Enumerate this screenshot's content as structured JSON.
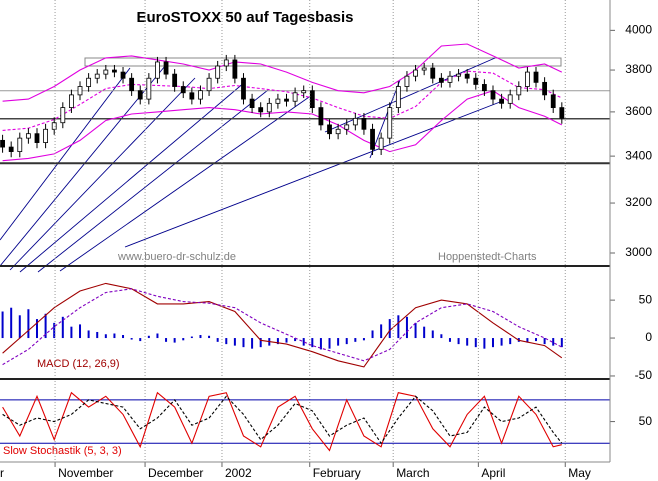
{
  "chart_data": [
    {
      "type": "candlestick",
      "title": "EuroSTOXX 50 auf Tagesbasis",
      "annotations": [
        "www.buero-dr-schulz.de",
        "Hoppenstedt-Charts"
      ],
      "xlim": [
        -0.3,
        70.6
      ],
      "ylim": [
        2950,
        4160
      ],
      "log_scale": true,
      "yticks": [
        3000,
        3200,
        3400,
        3600,
        3800,
        4000
      ],
      "open": [
        3470,
        3440,
        3420,
        3480,
        3500,
        3460,
        3520,
        3550,
        3620,
        3680,
        3720,
        3760,
        3780,
        3800,
        3790,
        3760,
        3700,
        3660,
        3760,
        3840,
        3780,
        3720,
        3690,
        3660,
        3700,
        3760,
        3820,
        3850,
        3760,
        3660,
        3620,
        3600,
        3640,
        3660,
        3650,
        3690,
        3700,
        3620,
        3540,
        3500,
        3520,
        3540,
        3570,
        3520,
        3430,
        3480,
        3620,
        3720,
        3770,
        3800,
        3810,
        3760,
        3740,
        3770,
        3780,
        3760,
        3730,
        3700,
        3660,
        3640,
        3680,
        3720,
        3790,
        3740,
        3680,
        3620
      ],
      "high": [
        3495,
        3465,
        3505,
        3525,
        3525,
        3545,
        3575,
        3645,
        3705,
        3745,
        3785,
        3805,
        3825,
        3825,
        3815,
        3785,
        3725,
        3785,
        3865,
        3865,
        3805,
        3745,
        3715,
        3725,
        3785,
        3845,
        3875,
        3875,
        3785,
        3685,
        3645,
        3665,
        3685,
        3685,
        3715,
        3725,
        3725,
        3645,
        3565,
        3545,
        3565,
        3595,
        3595,
        3545,
        3505,
        3645,
        3745,
        3795,
        3825,
        3835,
        3835,
        3785,
        3795,
        3805,
        3805,
        3785,
        3755,
        3725,
        3685,
        3705,
        3745,
        3815,
        3815,
        3765,
        3705,
        3645
      ],
      "low": [
        3415,
        3395,
        3395,
        3455,
        3435,
        3435,
        3495,
        3525,
        3595,
        3655,
        3695,
        3735,
        3755,
        3765,
        3735,
        3675,
        3635,
        3635,
        3735,
        3755,
        3695,
        3665,
        3635,
        3635,
        3675,
        3735,
        3795,
        3735,
        3635,
        3595,
        3575,
        3575,
        3615,
        3625,
        3625,
        3665,
        3595,
        3515,
        3475,
        3475,
        3495,
        3515,
        3495,
        3405,
        3405,
        3455,
        3595,
        3695,
        3745,
        3775,
        3735,
        3715,
        3715,
        3745,
        3735,
        3705,
        3675,
        3635,
        3615,
        3615,
        3655,
        3695,
        3715,
        3655,
        3595,
        3545
      ],
      "close": [
        3440,
        3420,
        3480,
        3500,
        3460,
        3520,
        3550,
        3620,
        3680,
        3720,
        3760,
        3780,
        3800,
        3790,
        3760,
        3700,
        3660,
        3760,
        3840,
        3780,
        3720,
        3690,
        3660,
        3700,
        3760,
        3820,
        3850,
        3760,
        3660,
        3620,
        3600,
        3640,
        3660,
        3650,
        3690,
        3700,
        3620,
        3540,
        3500,
        3520,
        3540,
        3570,
        3520,
        3430,
        3480,
        3620,
        3720,
        3770,
        3800,
        3810,
        3760,
        3740,
        3770,
        3780,
        3760,
        3730,
        3700,
        3660,
        3640,
        3680,
        3720,
        3790,
        3740,
        3680,
        3620,
        3570
      ],
      "series": [
        {
          "color": "#e000e0",
          "dashed": false,
          "x": [
            0,
            3,
            6,
            9,
            12,
            15,
            18,
            21,
            24,
            27,
            30,
            33,
            36,
            39,
            42,
            45,
            48,
            51,
            54,
            57,
            60,
            63,
            65
          ],
          "values": [
            3650,
            3660,
            3720,
            3800,
            3860,
            3870,
            3850,
            3830,
            3800,
            3840,
            3830,
            3790,
            3740,
            3700,
            3690,
            3720,
            3800,
            3920,
            3930,
            3870,
            3810,
            3830,
            3790
          ]
        },
        {
          "color": "#e000e0",
          "dashed": true,
          "x": [
            0,
            3,
            6,
            9,
            12,
            15,
            18,
            21,
            24,
            27,
            30,
            33,
            36,
            39,
            42,
            45,
            48,
            51,
            54,
            57,
            60,
            63,
            65
          ],
          "values": [
            3515,
            3525,
            3565,
            3635,
            3710,
            3730,
            3725,
            3720,
            3710,
            3725,
            3710,
            3695,
            3665,
            3620,
            3580,
            3570,
            3625,
            3740,
            3795,
            3785,
            3715,
            3705,
            3665
          ]
        },
        {
          "color": "#e000e0",
          "dashed": false,
          "x": [
            0,
            3,
            6,
            9,
            12,
            15,
            18,
            21,
            24,
            27,
            30,
            33,
            36,
            39,
            42,
            45,
            48,
            51,
            54,
            57,
            60,
            63,
            65
          ],
          "values": [
            3380,
            3390,
            3410,
            3470,
            3560,
            3590,
            3600,
            3610,
            3620,
            3610,
            3590,
            3600,
            3590,
            3540,
            3470,
            3420,
            3450,
            3560,
            3660,
            3700,
            3620,
            3580,
            3540
          ]
        }
      ],
      "levels": [
        {
          "value": 3700,
          "color": "#999999",
          "width": 1
        },
        {
          "value": 3568,
          "color": "#444444",
          "width": 1.5
        },
        {
          "value": 3369,
          "color": "#333333",
          "width": 2
        }
      ]
    },
    {
      "type": "macd",
      "label": "MACD (12, 26,9)",
      "xlim": [
        -0.3,
        70.6
      ],
      "ylim": [
        -54,
        95
      ],
      "yticks": [
        -50,
        0,
        50
      ],
      "histogram_color": "#0000cc",
      "histogram": [
        35,
        40,
        30,
        38,
        25,
        32,
        20,
        28,
        15,
        18,
        10,
        8,
        5,
        6,
        4,
        -2,
        -4,
        3,
        6,
        -5,
        -6,
        -3,
        2,
        4,
        3,
        -5,
        -8,
        -10,
        -12,
        -14,
        -12,
        -10,
        -8,
        -6,
        -4,
        -10,
        -12,
        -15,
        -14,
        -10,
        -8,
        -5,
        -3,
        10,
        18,
        25,
        30,
        28,
        20,
        15,
        10,
        5,
        -5,
        -8,
        -10,
        -12,
        -14,
        -12,
        -10,
        -8,
        -5,
        -6,
        -4,
        -8,
        -10,
        -12
      ],
      "series": [
        {
          "color": "#a00000",
          "dashed": false,
          "x": [
            0,
            3,
            6,
            9,
            12,
            15,
            18,
            21,
            24,
            27,
            30,
            33,
            36,
            39,
            42,
            45,
            48,
            51,
            54,
            57,
            60,
            63,
            65
          ],
          "values": [
            -20,
            10,
            40,
            62,
            72,
            65,
            45,
            45,
            48,
            35,
            -3,
            -8,
            -18,
            -30,
            -38,
            10,
            40,
            50,
            45,
            20,
            -3,
            -10,
            -26
          ]
        },
        {
          "color": "#8000c0",
          "dashed": true,
          "x": [
            0,
            3,
            6,
            9,
            12,
            15,
            18,
            21,
            24,
            27,
            30,
            33,
            36,
            39,
            42,
            45,
            48,
            51,
            54,
            57,
            60,
            63,
            65
          ],
          "values": [
            -35,
            -15,
            15,
            40,
            60,
            65,
            55,
            48,
            46,
            40,
            20,
            5,
            -10,
            -20,
            -30,
            -15,
            20,
            40,
            45,
            35,
            15,
            0,
            -12
          ]
        }
      ]
    },
    {
      "type": "line",
      "label": "Slow Stochastik (5, 3, 3)",
      "xlim": [
        -0.3,
        70.6
      ],
      "ylim": [
        -6,
        109
      ],
      "yticks": [
        50
      ],
      "levels": [
        {
          "value": 20,
          "color": "#0000aa",
          "width": 1
        },
        {
          "value": 80,
          "color": "#0000aa",
          "width": 1
        }
      ],
      "xticks": [
        {
          "value": -0.65,
          "label": "r"
        },
        {
          "value": 6.1,
          "label": "November"
        },
        {
          "value": 16.56,
          "label": "December"
        },
        {
          "value": 25.5,
          "label": "2002"
        },
        {
          "value": 35.7,
          "label": "February"
        },
        {
          "value": 45.4,
          "label": "March"
        },
        {
          "value": 55.3,
          "label": "April"
        },
        {
          "value": 65.4,
          "label": "May"
        }
      ],
      "series": [
        {
          "color": "#e00000",
          "dashed": false,
          "x": [
            0,
            2,
            4,
            6,
            8,
            10,
            12,
            14,
            16,
            18,
            20,
            22,
            24,
            26,
            28,
            30,
            32,
            34,
            36,
            38,
            40,
            42,
            44,
            46,
            48,
            50,
            52,
            54,
            56,
            58,
            60,
            62,
            64,
            65
          ],
          "values": [
            70,
            30,
            85,
            25,
            90,
            70,
            85,
            60,
            15,
            90,
            70,
            20,
            85,
            90,
            30,
            15,
            70,
            85,
            40,
            10,
            80,
            30,
            15,
            90,
            85,
            40,
            15,
            60,
            85,
            20,
            85,
            60,
            15,
            18
          ]
        },
        {
          "color": "#000000",
          "dashed": true,
          "x": [
            0,
            2,
            4,
            6,
            8,
            10,
            12,
            14,
            16,
            18,
            20,
            22,
            24,
            26,
            28,
            30,
            32,
            34,
            36,
            38,
            40,
            42,
            44,
            46,
            48,
            50,
            52,
            54,
            56,
            58,
            60,
            62,
            64,
            65
          ],
          "values": [
            60,
            45,
            55,
            50,
            60,
            80,
            75,
            70,
            40,
            55,
            80,
            45,
            55,
            85,
            60,
            25,
            45,
            75,
            65,
            30,
            45,
            55,
            20,
            55,
            85,
            65,
            30,
            35,
            70,
            50,
            55,
            70,
            35,
            20
          ]
        }
      ]
    }
  ]
}
